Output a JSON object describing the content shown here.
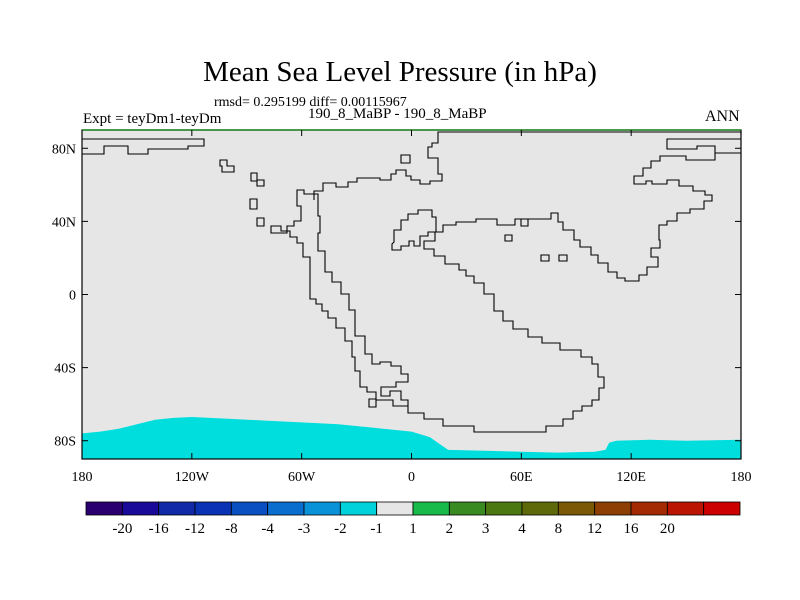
{
  "title": "Mean Sea Level Pressure (in hPa)",
  "stats": "rmsd= 0.295199 diff= 0.00115967",
  "left_label": "Expt = teyDm1-teyDm",
  "center_label": "190_8_MaBP - 190_8_MaBP",
  "right_label": "ANN",
  "colors": {
    "background_field": "#e6e6e6",
    "negative_anomaly_fill": "#00dddd",
    "coastline": "#000000",
    "frame_top": "#228822"
  },
  "map": {
    "projection": "cylindrical-equidistant",
    "lon_range": [
      -180,
      180
    ],
    "lat_range": [
      -90,
      90
    ],
    "y_tick_values": [
      80,
      40,
      0,
      -40,
      -80
    ],
    "y_tick_labels": [
      "80N",
      "40N",
      "0",
      "40S",
      "80S"
    ],
    "x_tick_values": [
      -180,
      -120,
      -60,
      0,
      60,
      120,
      180
    ],
    "x_tick_labels": [
      "180",
      "120W",
      "60W",
      "0",
      "60E",
      "120E",
      "180"
    ],
    "anomaly_region": "Antarctic band south of ~70S shaded in the -2 to -1 class",
    "anomaly_boundary": [
      [
        -180,
        -76
      ],
      [
        -170,
        -75
      ],
      [
        -160,
        -73.5
      ],
      [
        -150,
        -71
      ],
      [
        -140,
        -68.5
      ],
      [
        -130,
        -67.5
      ],
      [
        -120,
        -67
      ],
      [
        -110,
        -67.5
      ],
      [
        -100,
        -68
      ],
      [
        -80,
        -69
      ],
      [
        -60,
        -70
      ],
      [
        -40,
        -71
      ],
      [
        -20,
        -73
      ],
      [
        0,
        -75
      ],
      [
        10,
        -78
      ],
      [
        20,
        -85
      ],
      [
        40,
        -85.5
      ],
      [
        60,
        -86
      ],
      [
        80,
        -86.5
      ],
      [
        100,
        -86
      ],
      [
        106,
        -85
      ],
      [
        108,
        -81
      ],
      [
        112,
        -80
      ],
      [
        130,
        -79.5
      ],
      [
        150,
        -80
      ],
      [
        180,
        -79.5
      ]
    ]
  },
  "colorbar": {
    "colors": [
      "#2a0070",
      "#1a0a99",
      "#102aa8",
      "#0a32b5",
      "#0a4fc2",
      "#0a6ecf",
      "#0a92d8",
      "#00d2dc",
      "#e6e6e6",
      "#18bb4a",
      "#3a8a22",
      "#4c7812",
      "#5e6a0a",
      "#7a5806",
      "#8e4004",
      "#a32a02",
      "#bb1502",
      "#cc0000"
    ],
    "labels": [
      "-20",
      "-16",
      "-12",
      "-8",
      "-4",
      "-3",
      "-2",
      "-1",
      "1",
      "2",
      "3",
      "4",
      "8",
      "12",
      "16",
      "20"
    ]
  }
}
